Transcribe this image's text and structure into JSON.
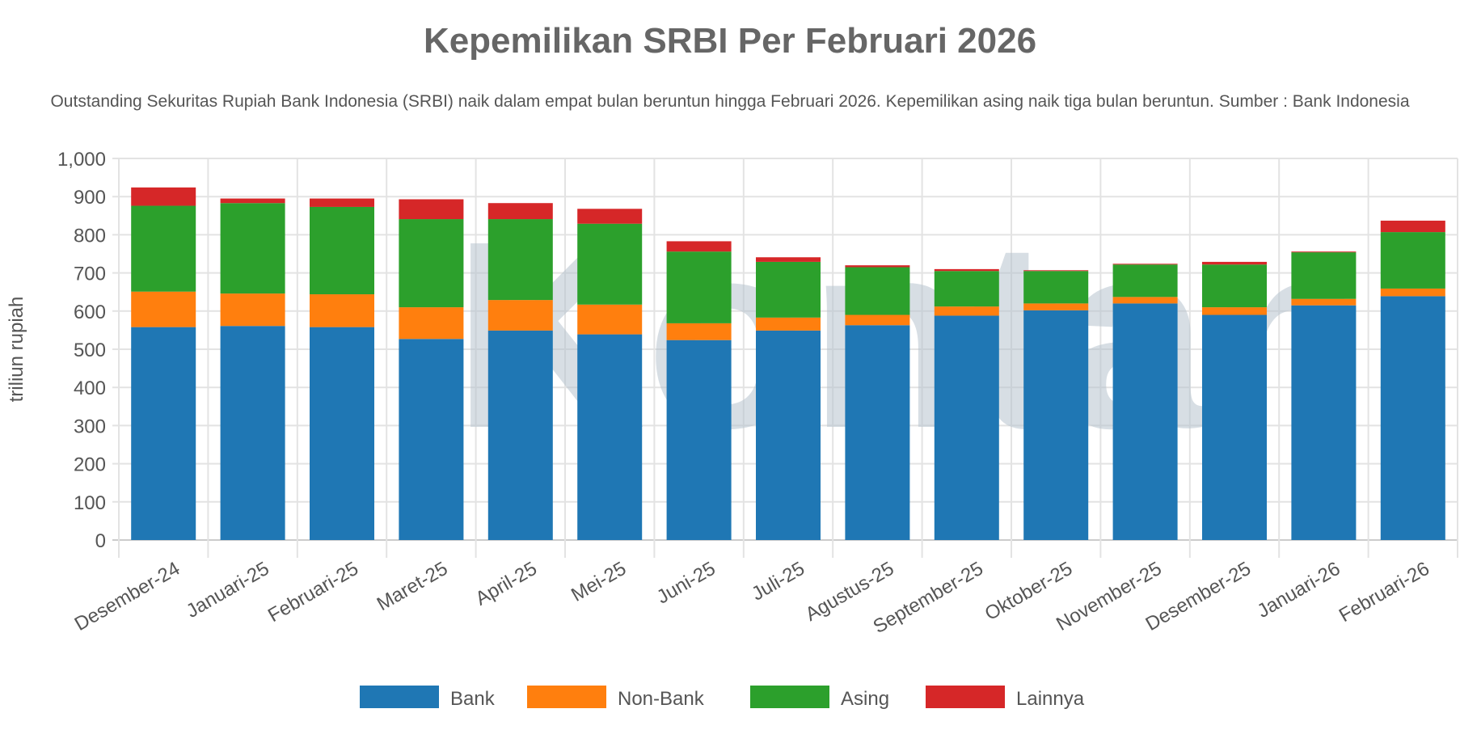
{
  "chart_data": {
    "type": "bar",
    "stacked": true,
    "title": "Kepemilikan SRBI Per Februari 2026",
    "subtitle": "Outstanding Sekuritas Rupiah Bank Indonesia (SRBI) naik dalam empat bulan beruntun hingga Februari 2026. Kepemilikan asing naik tiga bulan beruntun. Sumber : Bank Indonesia",
    "xlabel": "",
    "ylabel": "triliun rupiah",
    "ylim": [
      0,
      1000
    ],
    "yticks": [
      "0",
      "100",
      "200",
      "300",
      "400",
      "500",
      "600",
      "700",
      "800",
      "900",
      "1,000"
    ],
    "grid": true,
    "legend_position": "bottom",
    "watermark": "Kontan",
    "categories": [
      "Desember-24",
      "Januari-25",
      "Februari-25",
      "Maret-25",
      "April-25",
      "Mei-25",
      "Juni-25",
      "Juli-25",
      "Agustus-25",
      "September-25",
      "Oktober-25",
      "November-25",
      "Desember-25",
      "Januari-26",
      "Februari-26"
    ],
    "series": [
      {
        "name": "Bank",
        "color": "#1f77b4",
        "values": [
          558,
          561,
          558,
          527,
          549,
          539,
          524,
          549,
          563,
          588,
          602,
          620,
          590,
          615,
          639
        ]
      },
      {
        "name": "Non-Bank",
        "color": "#ff7f0e",
        "values": [
          93,
          85,
          86,
          83,
          80,
          78,
          44,
          34,
          27,
          24,
          18,
          17,
          20,
          17,
          20
        ]
      },
      {
        "name": "Asing",
        "color": "#2ca02c",
        "values": [
          225,
          237,
          229,
          231,
          212,
          212,
          188,
          146,
          125,
          93,
          85,
          85,
          112,
          122,
          148
        ]
      },
      {
        "name": "Lainnya",
        "color": "#d62728",
        "values": [
          48,
          12,
          22,
          52,
          42,
          39,
          27,
          12,
          5,
          5,
          2,
          2,
          7,
          2,
          30
        ]
      }
    ]
  }
}
